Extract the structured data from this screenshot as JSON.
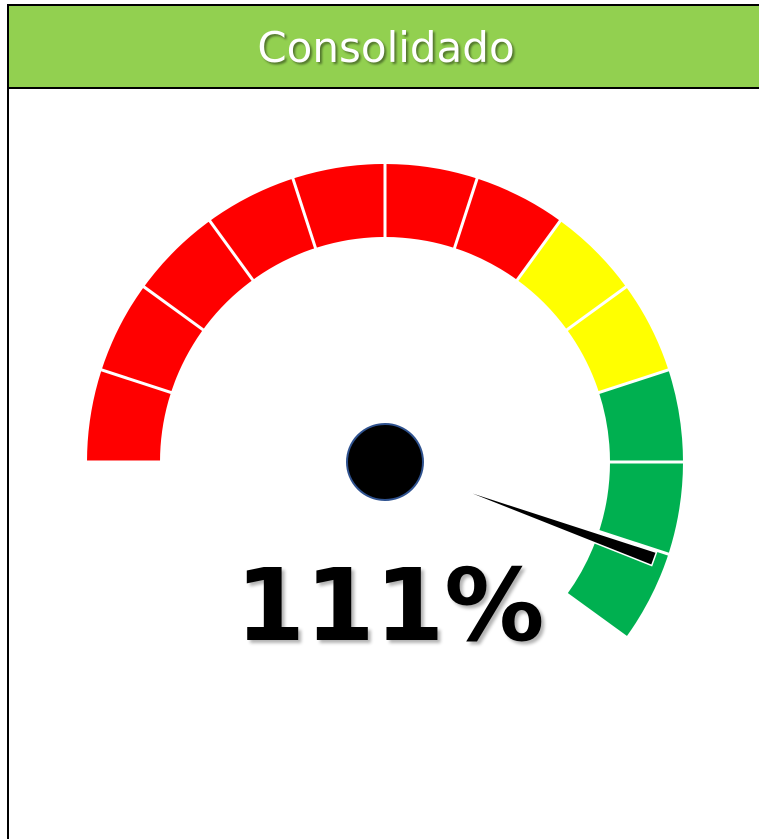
{
  "chart_data": {
    "type": "gauge",
    "title": "Consolidado",
    "value": 111,
    "value_label": "111%",
    "ylim": [
      0,
      120
    ],
    "yticks": [
      0,
      10,
      20,
      30,
      40,
      50,
      60,
      70,
      80,
      90,
      100,
      110,
      120
    ],
    "bands": [
      {
        "from": 0,
        "to": 70,
        "color": "#ff0000"
      },
      {
        "from": 70,
        "to": 90,
        "color": "#ffff00"
      },
      {
        "from": 90,
        "to": 120,
        "color": "#00b050"
      }
    ],
    "needle_color": "#000000"
  }
}
